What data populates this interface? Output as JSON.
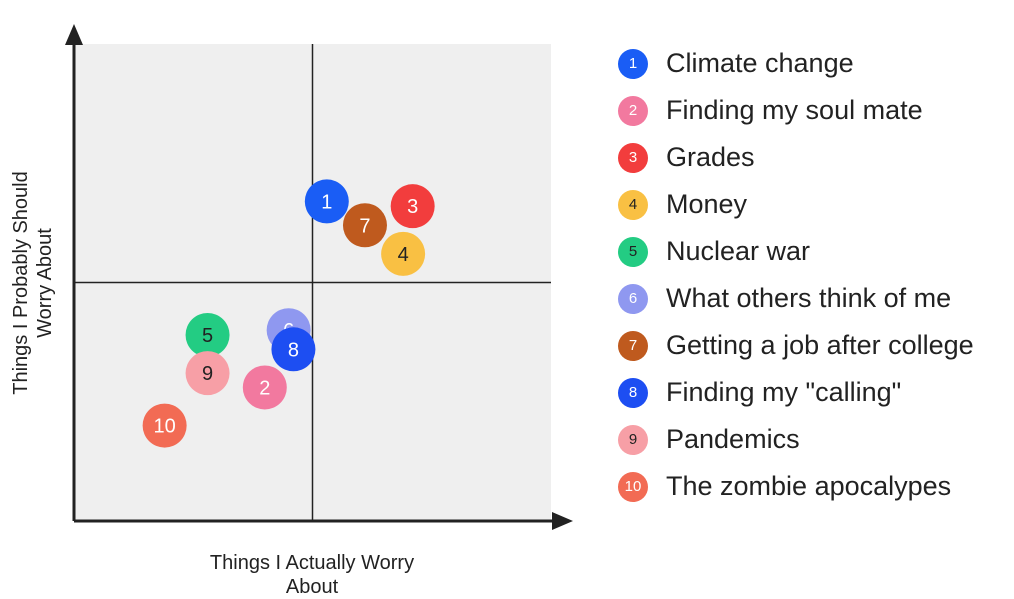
{
  "chart_data": {
    "type": "scatter",
    "xlabel": "Things I Actually Worry About",
    "ylabel": "Things I Probably Should Worry About",
    "xlim": [
      0,
      10
    ],
    "ylim": [
      0,
      10
    ],
    "grid": false,
    "quadrant_split": {
      "x": 5,
      "y": 5
    },
    "legend_position": "right",
    "points": [
      {
        "id": "1",
        "name": "Climate change",
        "x": 5.3,
        "y": 6.7,
        "color": "#1a5df5",
        "text_color": "#ffffff"
      },
      {
        "id": "2",
        "name": "Finding my soul mate",
        "x": 4.0,
        "y": 2.8,
        "color": "#f2799f",
        "text_color": "#ffffff"
      },
      {
        "id": "3",
        "name": "Grades",
        "x": 7.1,
        "y": 6.6,
        "color": "#f23d3d",
        "text_color": "#ffffff"
      },
      {
        "id": "4",
        "name": "Money",
        "x": 6.9,
        "y": 5.6,
        "color": "#f9c043",
        "text_color": "#222222"
      },
      {
        "id": "5",
        "name": "Nuclear war",
        "x": 2.8,
        "y": 3.9,
        "color": "#23cc83",
        "text_color": "#222222"
      },
      {
        "id": "6",
        "name": "What others think of me",
        "x": 4.5,
        "y": 4.0,
        "color": "#8f98f0",
        "text_color": "#ffffff"
      },
      {
        "id": "7",
        "name": "Getting a job after college",
        "x": 6.1,
        "y": 6.2,
        "color": "#bf5a1e",
        "text_color": "#ffffff"
      },
      {
        "id": "8",
        "name": "Finding my \"calling\"",
        "x": 4.6,
        "y": 3.6,
        "color": "#1d4ef2",
        "text_color": "#ffffff"
      },
      {
        "id": "9",
        "name": "Pandemics",
        "x": 2.8,
        "y": 3.1,
        "color": "#f79fa6",
        "text_color": "#222222"
      },
      {
        "id": "10",
        "name": "The zombie apocalypes",
        "x": 1.9,
        "y": 2.0,
        "color": "#f26b54",
        "text_color": "#ffffff"
      }
    ]
  }
}
